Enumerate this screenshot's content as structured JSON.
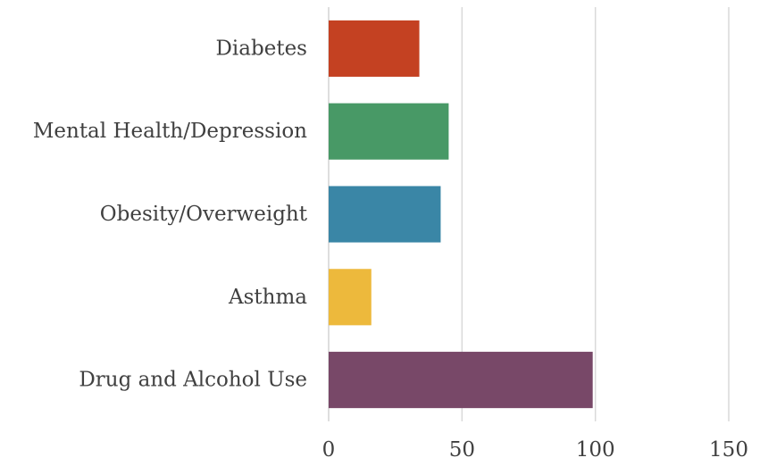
{
  "chart_data": {
    "type": "bar",
    "orientation": "horizontal",
    "categories": [
      "Diabetes",
      "Mental Health/Depression",
      "Obesity/Overweight",
      "Asthma",
      "Drug and Alcohol Use"
    ],
    "values": [
      34,
      45,
      42,
      16,
      99
    ],
    "colors": [
      "#c44122",
      "#489966",
      "#3a86a6",
      "#edb93c",
      "#784868"
    ],
    "xlim": [
      0,
      150
    ],
    "xticks": [
      0,
      50,
      100,
      150
    ],
    "grid": true,
    "legend": "none"
  }
}
